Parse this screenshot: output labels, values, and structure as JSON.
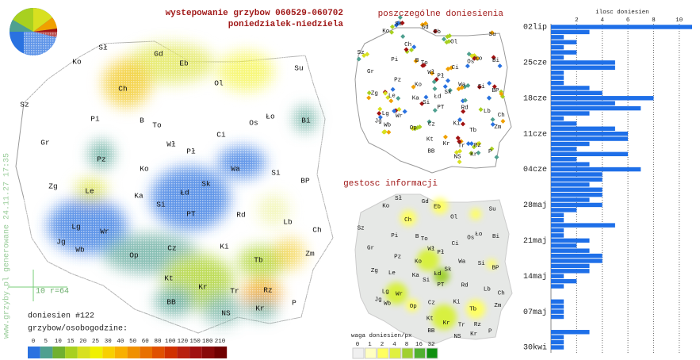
{
  "header": {
    "title": "wystepowanie grzybow 060529-060702",
    "subtitle": "poniedzialek-niedziela"
  },
  "map": {
    "cities": [
      "Sł",
      "Gd",
      "Eb",
      "Ko",
      "Ol",
      "Su",
      "Ch",
      "Sz",
      "Pi",
      "B",
      "To",
      "Os",
      "Ło",
      "Bi",
      "Gr",
      "Ci",
      "Wł",
      "Pł",
      "Pz",
      "Ko",
      "Wa",
      "Si",
      "BP",
      "Zg",
      "Le",
      "Ka",
      "Łd",
      "Sk",
      "Si",
      "PT",
      "Rd",
      "Lb",
      "Lg",
      "Wr",
      "Ch",
      "Jg",
      "Wb",
      "Op",
      "Cz",
      "Ki",
      "Tb",
      "Zm",
      "Kt",
      "Kr",
      "Tr",
      "Rz",
      "BB",
      "Kr",
      "P",
      "NS"
    ],
    "reports": "doniesien #122",
    "scale_label": "10 r=64",
    "credit": "www.grzyby.pl generowane 24.11.27 17:35"
  },
  "legend": {
    "title": "grzybow/osobogodzine:",
    "ticks": [
      0,
      5,
      10,
      15,
      20,
      25,
      30,
      40,
      50,
      60,
      80,
      100,
      120,
      150,
      180,
      210
    ],
    "colors": [
      "#2a72e0",
      "#4fa090",
      "#70b030",
      "#a8d020",
      "#d8e020",
      "#f0f000",
      "#f8d000",
      "#f8b000",
      "#f09000",
      "#e87000",
      "#e05000",
      "#d03000",
      "#b82010",
      "#a01010",
      "#880808",
      "#700000"
    ]
  },
  "points_map": {
    "title": "poszczególne doniesienia"
  },
  "density_map": {
    "title": "gestosc informacji",
    "legend_title": "waga doniesien/px",
    "ticks": [
      0,
      1,
      2,
      4,
      8,
      16,
      32
    ],
    "colors": [
      "#f0f0f0",
      "#ffffc0",
      "#ffff60",
      "#e0f040",
      "#a0d030",
      "#50b030",
      "#109010"
    ]
  },
  "chart_data": {
    "type": "bar",
    "orientation": "horizontal",
    "x_label": "ilosc doniesien",
    "categories": [
      "02lip",
      null,
      null,
      null,
      null,
      null,
      null,
      "25cze",
      null,
      null,
      null,
      null,
      null,
      null,
      "18cze",
      null,
      null,
      null,
      null,
      null,
      null,
      "11cze",
      null,
      null,
      null,
      null,
      null,
      null,
      "04cze",
      null,
      null,
      null,
      null,
      null,
      null,
      "28maj",
      null,
      null,
      null,
      null,
      null,
      null,
      "21maj",
      null,
      null,
      null,
      null,
      null,
      null,
      "14maj",
      null,
      null,
      null,
      null,
      null,
      null,
      "07maj",
      null,
      null,
      null,
      null,
      null,
      null,
      "30kwi"
    ],
    "values": [
      11,
      3,
      1,
      2,
      1,
      2,
      1,
      5,
      5,
      1,
      1,
      1,
      3,
      4,
      8,
      5,
      7,
      3,
      1,
      2,
      5,
      6,
      6,
      3,
      2,
      6,
      2,
      3,
      7,
      4,
      4,
      3,
      4,
      4,
      3,
      4,
      2,
      1,
      1,
      5,
      1,
      1,
      3,
      2,
      3,
      4,
      4,
      3,
      3,
      1,
      2,
      1,
      0,
      0,
      1,
      1,
      1,
      1,
      0,
      0,
      3,
      1,
      1,
      1
    ],
    "color": "#1e6fe8",
    "xlim": [
      0,
      11
    ],
    "xticks": [
      2,
      4,
      6,
      8,
      10
    ],
    "grid": true
  }
}
